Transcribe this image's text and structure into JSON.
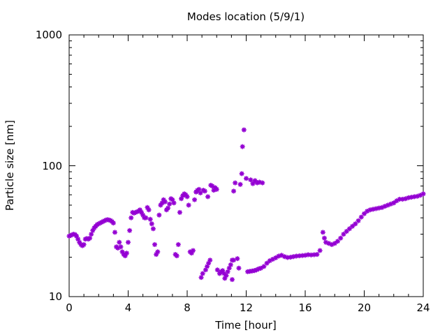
{
  "chart_data": {
    "type": "scatter",
    "title": "Modes location (5/9/1)",
    "xlabel": "Time [hour]",
    "ylabel": "Particle size [nm]",
    "xlim": [
      0,
      24
    ],
    "ylim": [
      10,
      1000
    ],
    "yscale": "log",
    "xticks": [
      "0",
      "4",
      "8",
      "12",
      "16",
      "20",
      "24"
    ],
    "yticks": [
      "10",
      "100",
      "1000"
    ],
    "grid": false,
    "legend": "none",
    "marker_color": "#9400d3",
    "series": [
      {
        "values": [
          [
            0.0,
            29.0
          ],
          [
            0.1,
            29.3
          ],
          [
            0.2,
            29.7
          ],
          [
            0.3,
            30.0
          ],
          [
            0.4,
            29.8
          ],
          [
            0.5,
            29.0
          ],
          [
            0.6,
            27.5
          ],
          [
            0.7,
            26.0
          ],
          [
            0.8,
            25.0
          ],
          [
            0.9,
            24.5
          ],
          [
            1.0,
            25.0
          ],
          [
            1.1,
            27.5
          ],
          [
            1.2,
            27.8
          ],
          [
            1.3,
            27.5
          ],
          [
            1.4,
            28.0
          ],
          [
            1.5,
            30.0
          ],
          [
            1.6,
            32.0
          ],
          [
            1.7,
            33.5
          ],
          [
            1.8,
            34.5
          ],
          [
            1.9,
            35.5
          ],
          [
            2.0,
            36.0
          ],
          [
            2.1,
            36.5
          ],
          [
            2.2,
            37.0
          ],
          [
            2.3,
            37.5
          ],
          [
            2.4,
            38.0
          ],
          [
            2.5,
            38.5
          ],
          [
            2.6,
            38.7
          ],
          [
            2.7,
            38.5
          ],
          [
            2.8,
            38.2
          ],
          [
            2.9,
            37.5
          ],
          [
            3.0,
            36.5
          ],
          [
            3.1,
            31.0
          ],
          [
            3.2,
            24.0
          ],
          [
            3.3,
            23.5
          ],
          [
            3.4,
            26.0
          ],
          [
            3.5,
            24.0
          ],
          [
            3.6,
            22.0
          ],
          [
            3.7,
            21.0
          ],
          [
            3.8,
            20.5
          ],
          [
            3.9,
            21.5
          ],
          [
            4.0,
            26.0
          ],
          [
            4.1,
            32.0
          ],
          [
            4.2,
            40.0
          ],
          [
            4.3,
            44.0
          ],
          [
            4.4,
            43.5
          ],
          [
            4.5,
            44.0
          ],
          [
            4.6,
            44.5
          ],
          [
            4.7,
            45.0
          ],
          [
            4.8,
            46.0
          ],
          [
            4.9,
            44.0
          ],
          [
            5.0,
            42.0
          ],
          [
            5.1,
            40.0
          ],
          [
            5.2,
            40.0
          ],
          [
            5.3,
            48.0
          ],
          [
            5.4,
            46.0
          ],
          [
            5.5,
            39.0
          ],
          [
            5.6,
            36.0
          ],
          [
            5.7,
            33.0
          ],
          [
            5.8,
            25.0
          ],
          [
            5.9,
            21.0
          ],
          [
            6.0,
            22.0
          ],
          [
            6.1,
            42.0
          ],
          [
            6.2,
            50.0
          ],
          [
            6.3,
            52.0
          ],
          [
            6.4,
            55.0
          ],
          [
            6.5,
            53.0
          ],
          [
            6.6,
            46.0
          ],
          [
            6.7,
            47.5
          ],
          [
            6.8,
            51.0
          ],
          [
            6.9,
            56.0
          ],
          [
            7.0,
            55.0
          ],
          [
            7.1,
            52.0
          ],
          [
            7.2,
            21.0
          ],
          [
            7.3,
            20.5
          ],
          [
            7.4,
            25.0
          ],
          [
            7.5,
            44.0
          ],
          [
            7.6,
            56.0
          ],
          [
            7.7,
            59.0
          ],
          [
            7.8,
            61.0
          ],
          [
            7.9,
            60.0
          ],
          [
            8.0,
            58.0
          ],
          [
            8.1,
            50.0
          ],
          [
            8.2,
            22.0
          ],
          [
            8.3,
            21.5
          ],
          [
            8.4,
            22.5
          ],
          [
            8.5,
            55.0
          ],
          [
            8.6,
            63.0
          ],
          [
            8.7,
            65.0
          ],
          [
            8.8,
            66.0
          ],
          [
            8.9,
            62.0
          ],
          [
            8.95,
            14.0
          ],
          [
            9.05,
            15.0
          ],
          [
            9.1,
            65.0
          ],
          [
            9.2,
            64.0
          ],
          [
            9.25,
            16.0
          ],
          [
            9.35,
            17.0
          ],
          [
            9.4,
            58.0
          ],
          [
            9.45,
            18.0
          ],
          [
            9.55,
            19.0
          ],
          [
            9.6,
            71.0
          ],
          [
            9.7,
            70.0
          ],
          [
            9.8,
            65.0
          ],
          [
            9.9,
            68.0
          ],
          [
            10.0,
            66.0
          ],
          [
            10.05,
            16.0
          ],
          [
            10.2,
            15.0
          ],
          [
            10.3,
            15.5
          ],
          [
            10.4,
            15.8
          ],
          [
            10.5,
            15.0
          ],
          [
            10.55,
            13.8
          ],
          [
            10.65,
            14.5
          ],
          [
            10.75,
            15.5
          ],
          [
            10.85,
            16.5
          ],
          [
            10.95,
            17.5
          ],
          [
            11.05,
            19.0
          ],
          [
            11.05,
            13.5
          ],
          [
            11.15,
            19.0
          ],
          [
            11.15,
            64.0
          ],
          [
            11.25,
            74.0
          ],
          [
            11.4,
            19.5
          ],
          [
            11.5,
            16.5
          ],
          [
            11.6,
            72.0
          ],
          [
            11.7,
            87.0
          ],
          [
            11.75,
            140.0
          ],
          [
            11.85,
            188.0
          ],
          [
            12.0,
            80.0
          ],
          [
            12.1,
            15.5
          ],
          [
            12.25,
            15.6
          ],
          [
            12.3,
            78.0
          ],
          [
            12.4,
            15.7
          ],
          [
            12.45,
            73.0
          ],
          [
            12.55,
            15.8
          ],
          [
            12.6,
            77.0
          ],
          [
            12.7,
            16.0
          ],
          [
            12.75,
            74.0
          ],
          [
            12.85,
            16.3
          ],
          [
            12.9,
            75.0
          ],
          [
            13.0,
            16.5
          ],
          [
            13.1,
            74.0
          ],
          [
            13.2,
            17.0
          ],
          [
            13.4,
            18.0
          ],
          [
            13.6,
            18.8
          ],
          [
            13.8,
            19.3
          ],
          [
            14.0,
            19.8
          ],
          [
            14.2,
            20.4
          ],
          [
            14.4,
            20.7
          ],
          [
            14.6,
            20.2
          ],
          [
            14.8,
            19.9
          ],
          [
            15.0,
            20.0
          ],
          [
            15.2,
            20.2
          ],
          [
            15.4,
            20.4
          ],
          [
            15.6,
            20.5
          ],
          [
            15.8,
            20.6
          ],
          [
            16.0,
            20.7
          ],
          [
            16.2,
            20.9
          ],
          [
            16.4,
            20.8
          ],
          [
            16.6,
            20.9
          ],
          [
            16.8,
            21.0
          ],
          [
            17.0,
            22.5
          ],
          [
            17.2,
            31.0
          ],
          [
            17.3,
            28.0
          ],
          [
            17.4,
            26.0
          ],
          [
            17.6,
            25.5
          ],
          [
            17.8,
            25.0
          ],
          [
            18.0,
            25.5
          ],
          [
            18.2,
            26.5
          ],
          [
            18.4,
            28.0
          ],
          [
            18.6,
            30.0
          ],
          [
            18.8,
            31.5
          ],
          [
            19.0,
            33.0
          ],
          [
            19.2,
            34.5
          ],
          [
            19.4,
            36.0
          ],
          [
            19.6,
            38.0
          ],
          [
            19.8,
            40.5
          ],
          [
            20.0,
            43.0
          ],
          [
            20.2,
            45.0
          ],
          [
            20.4,
            46.0
          ],
          [
            20.6,
            46.5
          ],
          [
            20.8,
            47.0
          ],
          [
            21.0,
            47.5
          ],
          [
            21.2,
            48.0
          ],
          [
            21.4,
            49.0
          ],
          [
            21.6,
            50.0
          ],
          [
            21.8,
            51.0
          ],
          [
            22.0,
            52.0
          ],
          [
            22.2,
            54.0
          ],
          [
            22.4,
            55.5
          ],
          [
            22.6,
            55.5
          ],
          [
            22.8,
            56.0
          ],
          [
            23.0,
            57.0
          ],
          [
            23.2,
            57.5
          ],
          [
            23.4,
            58.0
          ],
          [
            23.6,
            58.5
          ],
          [
            23.8,
            59.5
          ],
          [
            24.0,
            61.0
          ]
        ]
      }
    ]
  }
}
